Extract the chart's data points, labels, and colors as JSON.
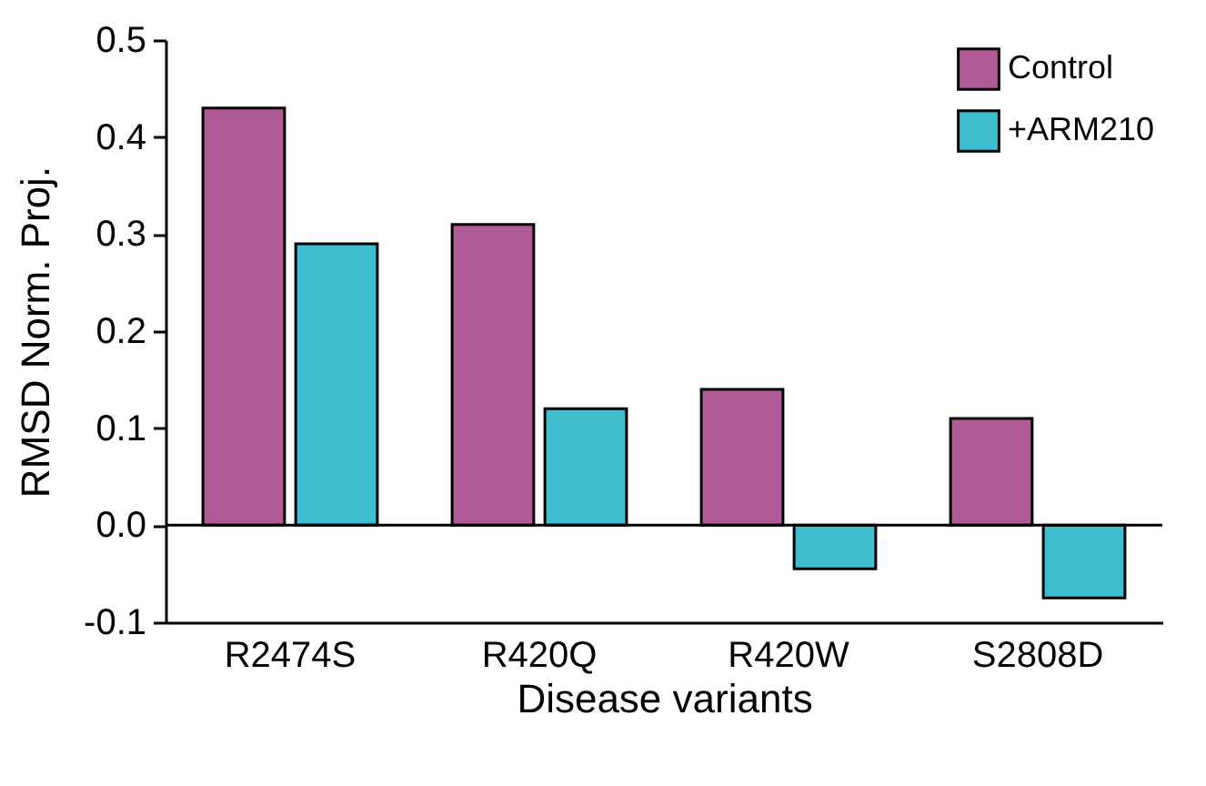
{
  "chart_data": {
    "type": "bar",
    "xlabel": "Disease variants",
    "ylabel": "RMSD Norm. Proj.",
    "categories": [
      "R2474S",
      "R420Q",
      "R420W",
      "S2808D"
    ],
    "series": [
      {
        "name": "Control",
        "color": "#b05a96",
        "values": [
          0.43,
          0.31,
          0.14,
          0.11
        ]
      },
      {
        "name": "+ARM210",
        "color": "#3fbecf",
        "values": [
          0.29,
          0.12,
          -0.045,
          -0.075
        ]
      }
    ],
    "ylim": [
      -0.1,
      0.5
    ],
    "yticks": [
      -0.1,
      {
        "value": 0,
        "label": "0.0"
      },
      0.1,
      0.2,
      0.3,
      0.4,
      0.5
    ],
    "ref_lines": [
      {
        "axis": "y",
        "value": 0,
        "color": "#000000"
      }
    ],
    "legend": "top right",
    "grid": false
  }
}
